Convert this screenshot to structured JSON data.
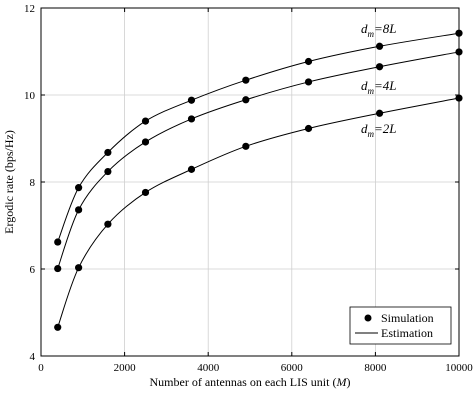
{
  "chart_data": {
    "type": "line",
    "xlabel": "Number of antennas on each LIS unit (",
    "xlabel_var": "M",
    "xlabel_close": ")",
    "ylabel": "Ergodic rate (bps/Hz)",
    "xlim": [
      0,
      10000
    ],
    "ylim": [
      4,
      12
    ],
    "xticks": [
      0,
      2000,
      4000,
      6000,
      8000,
      10000
    ],
    "yticks": [
      4,
      6,
      8,
      10,
      12
    ],
    "x": [
      400,
      900,
      1600,
      2500,
      3600,
      4900,
      6400,
      8100,
      10000
    ],
    "series": [
      {
        "d_base": "d",
        "d_sub": "m",
        "d_value": "=8L",
        "values": [
          6.62,
          7.87,
          8.68,
          9.4,
          9.88,
          10.34,
          10.77,
          11.12,
          11.42
        ]
      },
      {
        "d_base": "d",
        "d_sub": "m",
        "d_value": "=4L",
        "values": [
          6.01,
          7.36,
          8.24,
          8.92,
          9.45,
          9.89,
          10.3,
          10.65,
          10.99
        ]
      },
      {
        "d_base": "d",
        "d_sub": "m",
        "d_value": "=2L",
        "values": [
          4.66,
          6.03,
          7.03,
          7.76,
          8.29,
          8.82,
          9.23,
          9.58,
          9.93
        ]
      }
    ],
    "grid": true,
    "legend": {
      "position": "bottom-right",
      "entries": [
        "Simulation",
        "Estimation"
      ]
    }
  }
}
